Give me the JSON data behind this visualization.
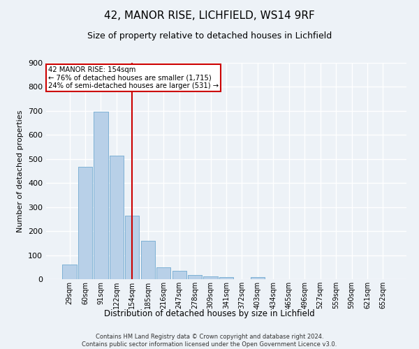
{
  "title1": "42, MANOR RISE, LICHFIELD, WS14 9RF",
  "title2": "Size of property relative to detached houses in Lichfield",
  "xlabel": "Distribution of detached houses by size in Lichfield",
  "ylabel": "Number of detached properties",
  "footer": "Contains HM Land Registry data © Crown copyright and database right 2024.\nContains public sector information licensed under the Open Government Licence v3.0.",
  "categories": [
    "29sqm",
    "60sqm",
    "91sqm",
    "122sqm",
    "154sqm",
    "185sqm",
    "216sqm",
    "247sqm",
    "278sqm",
    "309sqm",
    "341sqm",
    "372sqm",
    "403sqm",
    "434sqm",
    "465sqm",
    "496sqm",
    "527sqm",
    "559sqm",
    "590sqm",
    "621sqm",
    "652sqm"
  ],
  "values": [
    62,
    468,
    698,
    515,
    265,
    160,
    48,
    35,
    18,
    13,
    10,
    0,
    8,
    0,
    0,
    0,
    0,
    0,
    0,
    0,
    0
  ],
  "bar_color": "#b8d0e8",
  "bar_edge_color": "#7aafd4",
  "marker_label1": "42 MANOR RISE: 154sqm",
  "marker_label2": "← 76% of detached houses are smaller (1,715)",
  "marker_label3": "24% of semi-detached houses are larger (531) →",
  "ylim": [
    0,
    900
  ],
  "yticks": [
    0,
    100,
    200,
    300,
    400,
    500,
    600,
    700,
    800,
    900
  ],
  "bg_color": "#edf2f7",
  "plot_bg_color": "#edf2f7",
  "grid_color": "#ffffff",
  "vline_color": "#cc0000",
  "box_color": "#cc0000",
  "title1_fontsize": 11,
  "title2_fontsize": 9
}
